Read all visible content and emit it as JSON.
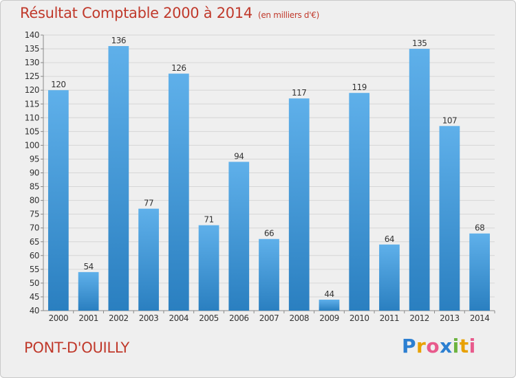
{
  "header": {
    "title": "Résultat Comptable 2000 à 2014",
    "subtitle": "(en milliers d'€)"
  },
  "footer": {
    "location": "PONT-D'OUILLY",
    "brand_letters": [
      "P",
      "r",
      "o",
      "x",
      "i",
      "t",
      "i"
    ],
    "brand_colors": [
      "#2c7fd1",
      "#e8a100",
      "#e85a8c",
      "#2c7fd1",
      "#6cb33f",
      "#e8a100",
      "#e85a8c"
    ]
  },
  "colors": {
    "title": "#c0392b",
    "bar_light": "#5fb0ea",
    "bar_dark": "#2a7fc0",
    "grid": "#d6d6d6",
    "text": "#333333"
  },
  "chart_data": {
    "type": "bar",
    "categories": [
      "2000",
      "2001",
      "2002",
      "2003",
      "2004",
      "2005",
      "2006",
      "2007",
      "2008",
      "2009",
      "2010",
      "2011",
      "2012",
      "2013",
      "2014"
    ],
    "values": [
      120,
      54,
      136,
      77,
      126,
      71,
      94,
      66,
      117,
      44,
      119,
      64,
      135,
      107,
      68
    ],
    "ylim": [
      40,
      140
    ],
    "yticks": [
      40,
      45,
      50,
      55,
      60,
      65,
      70,
      75,
      80,
      85,
      90,
      95,
      100,
      105,
      110,
      115,
      120,
      125,
      130,
      135,
      140
    ],
    "grid": true
  }
}
